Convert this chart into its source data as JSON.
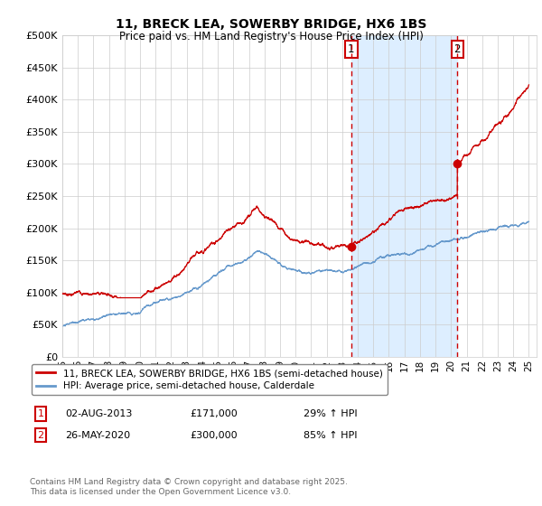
{
  "title_line1": "11, BRECK LEA, SOWERBY BRIDGE, HX6 1BS",
  "title_line2": "Price paid vs. HM Land Registry's House Price Index (HPI)",
  "legend_label_red": "11, BRECK LEA, SOWERBY BRIDGE, HX6 1BS (semi-detached house)",
  "legend_label_blue": "HPI: Average price, semi-detached house, Calderdale",
  "annotation1_date": "02-AUG-2013",
  "annotation1_price": "£171,000",
  "annotation1_hpi": "29% ↑ HPI",
  "annotation2_date": "26-MAY-2020",
  "annotation2_price": "£300,000",
  "annotation2_hpi": "85% ↑ HPI",
  "copyright_text": "Contains HM Land Registry data © Crown copyright and database right 2025.\nThis data is licensed under the Open Government Licence v3.0.",
  "red_color": "#cc0000",
  "blue_color": "#6699cc",
  "shade_color": "#ddeeff",
  "grid_color": "#cccccc",
  "background_color": "#ffffff",
  "ylim": [
    0,
    500000
  ],
  "yticks": [
    0,
    50000,
    100000,
    150000,
    200000,
    250000,
    300000,
    350000,
    400000,
    450000,
    500000
  ],
  "year_start": 1995,
  "year_end": 2025,
  "purchase_date_1": 2013.58,
  "purchase_price_1": 171000,
  "purchase_date_2": 2020.4,
  "purchase_price_2": 300000
}
